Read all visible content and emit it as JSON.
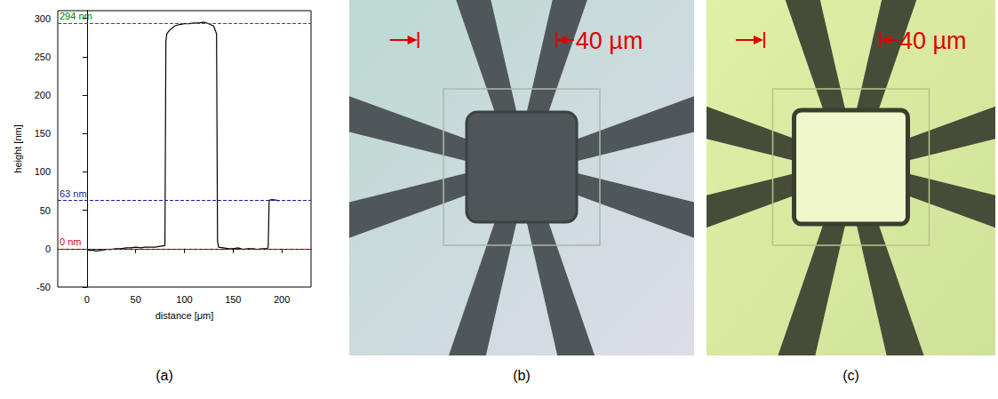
{
  "chart_data": {
    "type": "line",
    "x_label": "distance [μm]",
    "y_label": "height [nm]",
    "x": [
      0,
      5,
      10,
      15,
      20,
      25,
      30,
      35,
      40,
      45,
      50,
      55,
      60,
      65,
      70,
      75,
      80,
      81,
      82,
      85,
      90,
      95,
      100,
      105,
      110,
      115,
      120,
      125,
      130,
      133,
      134,
      135,
      140,
      145,
      150,
      155,
      160,
      165,
      170,
      175,
      180,
      185,
      186,
      187,
      190,
      195,
      197
    ],
    "values": [
      -2,
      -2,
      -3,
      -2,
      -1,
      -1,
      0,
      0,
      1,
      1,
      2,
      1,
      2,
      2,
      2,
      3,
      4,
      270,
      280,
      285,
      290,
      292,
      293,
      293,
      294,
      294,
      295,
      293,
      290,
      280,
      10,
      2,
      1,
      0,
      0,
      1,
      -1,
      0,
      0,
      -1,
      0,
      0,
      2,
      63,
      64,
      63,
      62
    ],
    "color": "#000000",
    "xlim": [
      -30,
      230
    ],
    "xticks": [
      0,
      50,
      100,
      150,
      200
    ],
    "ylim": [
      -50,
      310
    ],
    "yticks": [
      -50,
      0,
      50,
      100,
      150,
      200,
      250,
      300
    ],
    "grid": false,
    "annotations": [
      {
        "value": 294,
        "label": "294 nm",
        "color": "#008000"
      },
      {
        "value": 63,
        "label": "63 nm",
        "color": "#1a1a9c"
      },
      {
        "value": 0,
        "label": "0 nm",
        "color": "#e00000"
      }
    ]
  },
  "figure": {
    "panel_labels": [
      "(a)",
      "(b)",
      "(c)"
    ],
    "scale_bars": [
      "40 µm",
      "40 µm"
    ]
  }
}
